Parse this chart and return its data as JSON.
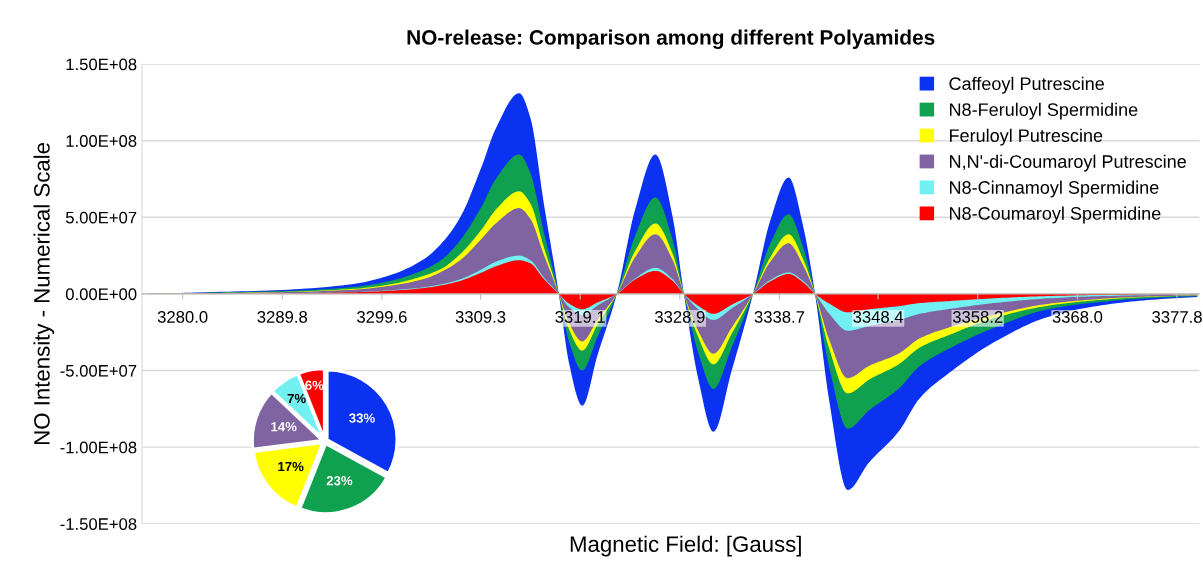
{
  "chart_data": [
    {
      "type": "area",
      "title": "NO-release: Comparison among different Polyamides",
      "xlabel": "Magnetic Field: [Gauss]",
      "ylabel": "NO Intensity - Numerical Scale",
      "x": [
        3276,
        3281.7,
        3289.8,
        3296.8,
        3300.3,
        3303.8,
        3305.6,
        3307.3,
        3309.4,
        3310.8,
        3313.1,
        3314.2,
        3315.5,
        3317.0,
        3318.0,
        3319.3,
        3320.8,
        3322.7,
        3324.5,
        3326.5,
        3328.2,
        3329.3,
        3330.7,
        3332.2,
        3334.0,
        3336.1,
        3337.8,
        3339.6,
        3341.0,
        3342.2,
        3343.6,
        3345.4,
        3347.5,
        3350.4,
        3352.5,
        3355.3,
        3360.2,
        3365.1,
        3370.0,
        3374.9,
        3379.8
      ],
      "series": [
        {
          "name": "Caffeoyl Putrescine",
          "color": "#0a32f0",
          "values": [
            0,
            1000000.0,
            2600000.0,
            6500000.0,
            12000000.0,
            23000000.0,
            34000000.0,
            50000000.0,
            83000000.0,
            108000000.0,
            131000000.0,
            115000000.0,
            60000000.0,
            0,
            -45000000.0,
            -73000000.0,
            -40000000.0,
            0,
            55000000.0,
            91000000.0,
            50000000.0,
            0,
            -55000000.0,
            -90000000.0,
            -50000000.0,
            0,
            48000000.0,
            76000000.0,
            45000000.0,
            0,
            -70000000.0,
            -128000000.0,
            -110000000.0,
            -90000000.0,
            -68000000.0,
            -52000000.0,
            -30000000.0,
            -15000000.0,
            -7800000.0,
            -4000000.0,
            -2000000.0
          ]
        },
        {
          "name": "N8-Feruloyl Spermidine",
          "color": "#0fa050",
          "values": [
            0,
            700000.0,
            1800000.0,
            4500000.0,
            8300000.0,
            16000000.0,
            23000000.0,
            35000000.0,
            57000000.0,
            75000000.0,
            91000000.0,
            79000000.0,
            41000000.0,
            0,
            -31000000.0,
            -50000000.0,
            -28000000.0,
            0,
            38000000.0,
            63000000.0,
            35000000.0,
            0,
            -38000000.0,
            -62000000.0,
            -35000000.0,
            0,
            33000000.0,
            52000000.0,
            31000000.0,
            0,
            -48000000.0,
            -88000000.0,
            -76000000.0,
            -62000000.0,
            -47000000.0,
            -36000000.0,
            -21000000.0,
            -10000000.0,
            -5400000.0,
            -2800000.0,
            -1400000.0
          ]
        },
        {
          "name": "Feruloyl Putrescine",
          "color": "#ffff00",
          "values": [
            0,
            500000.0,
            1300000.0,
            3300000.0,
            6100000.0,
            12000000.0,
            17000000.0,
            26000000.0,
            42000000.0,
            55000000.0,
            67000000.0,
            59000000.0,
            31000000.0,
            0,
            -23000000.0,
            -37000000.0,
            -20000000.0,
            0,
            28000000.0,
            46000000.0,
            26000000.0,
            0,
            -28000000.0,
            -46000000.0,
            -26000000.0,
            0,
            24000000.0,
            39000000.0,
            23000000.0,
            0,
            -36000000.0,
            -65000000.0,
            -56000000.0,
            -46000000.0,
            -35000000.0,
            -27000000.0,
            -15000000.0,
            -7700000.0,
            -4000000.0,
            -2000000.0,
            -1000000.0
          ]
        },
        {
          "name": "N,N'-di-Coumaroyl Putrescine",
          "color": "#8064a2",
          "values": [
            0,
            400000.0,
            1100000.0,
            2800000.0,
            5200000.0,
            9900000.0,
            15000000.0,
            22000000.0,
            36000000.0,
            46000000.0,
            56000000.0,
            49000000.0,
            26000000.0,
            0,
            -19000000.0,
            -31000000.0,
            -17000000.0,
            0,
            24000000.0,
            39000000.0,
            22000000.0,
            0,
            -24000000.0,
            -39000000.0,
            -22000000.0,
            0,
            21000000.0,
            33000000.0,
            19000000.0,
            0,
            -30000000.0,
            -55000000.0,
            -47000000.0,
            -39000000.0,
            -29000000.0,
            -22000000.0,
            -13000000.0,
            -6500000.0,
            -3400000.0,
            -1700000.0,
            -900000.0
          ]
        },
        {
          "name": "N8-Cinnamoyl Spermidine",
          "color": "#70f0f0",
          "values": [
            0,
            200000.0,
            500000.0,
            1200000.0,
            2300000.0,
            4400000.0,
            6500000.0,
            9500000.0,
            16000000.0,
            21000000.0,
            25000000.0,
            22000000.0,
            11000000.0,
            0,
            -8600000.0,
            -14000000.0,
            -7600000.0,
            0,
            10000000.0,
            17000000.0,
            9500000.0,
            0,
            -10000000.0,
            -17000000.0,
            -9500000.0,
            0,
            9100000.0,
            14000000.0,
            8600000.0,
            0,
            -13000000.0,
            -24000000.0,
            -21000000.0,
            -17000000.0,
            -13000000.0,
            -9900000.0,
            -5700000.0,
            -2900000.0,
            -1500000.0,
            -800000.0,
            -400000.0
          ]
        },
        {
          "name": "N8-Coumaroyl Spermidine",
          "color": "#ff0000",
          "values": [
            0,
            200000.0,
            400000.0,
            1100000.0,
            2000000.0,
            3900000.0,
            5800000.0,
            8500000.0,
            14000000.0,
            18000000.0,
            22000000.0,
            20000000.0,
            10000000.0,
            0,
            -6300000.0,
            -10000000.0,
            -5600000.0,
            0,
            9400000.0,
            15000000.0,
            8500000.0,
            0,
            -7700000.0,
            -13000000.0,
            -7000000.0,
            0,
            8200000.0,
            13000000.0,
            7700000.0,
            0,
            -6300000.0,
            -12000000.0,
            -10000000.0,
            -8000000.0,
            -6000000.0,
            -4700000.0,
            -2700000.0,
            -1400000.0,
            -700000.0,
            -400000.0,
            -200000.0
          ]
        }
      ],
      "xlim": [
        3276,
        3380
      ],
      "xticks": [
        {
          "value": 3280.0,
          "label": "3280.0"
        },
        {
          "value": 3289.8,
          "label": "3289.8"
        },
        {
          "value": 3299.6,
          "label": "3299.6"
        },
        {
          "value": 3309.3,
          "label": "3309.3"
        },
        {
          "value": 3319.1,
          "label": "3319.1"
        },
        {
          "value": 3328.9,
          "label": "3328.9"
        },
        {
          "value": 3338.7,
          "label": "3338.7"
        },
        {
          "value": 3348.4,
          "label": "3348.4"
        },
        {
          "value": 3358.2,
          "label": "3358.2"
        },
        {
          "value": 3368.0,
          "label": "3368.0"
        },
        {
          "value": 3377.8,
          "label": "3377.8"
        }
      ],
      "ylim": [
        -150000000.0,
        150000000.0
      ],
      "yticks": [
        {
          "value": -150000000.0,
          "label": "-1.50E+08"
        },
        {
          "value": -100000000.0,
          "label": "-1.00E+08"
        },
        {
          "value": -50000000.0,
          "label": "-5.00E+07"
        },
        {
          "value": 0,
          "label": "0.00E+00"
        },
        {
          "value": 50000000.0,
          "label": "5.00E+07"
        },
        {
          "value": 100000000.0,
          "label": "1.00E+08"
        },
        {
          "value": 150000000.0,
          "label": "1.50E+08"
        }
      ],
      "grid": "y",
      "legend": "top right"
    },
    {
      "type": "pie",
      "categories": [
        null,
        null,
        null,
        null,
        null,
        null
      ],
      "values": [
        33,
        23,
        17,
        14,
        7,
        6
      ],
      "colors": [
        "#0a32f0",
        "#0fa050",
        "#ffff00",
        "#8064a2",
        "#70f0f0",
        "#ff0000"
      ],
      "value_labels": [
        "33%",
        "23%",
        "17%",
        "14%",
        "7%",
        "6%"
      ]
    }
  ]
}
